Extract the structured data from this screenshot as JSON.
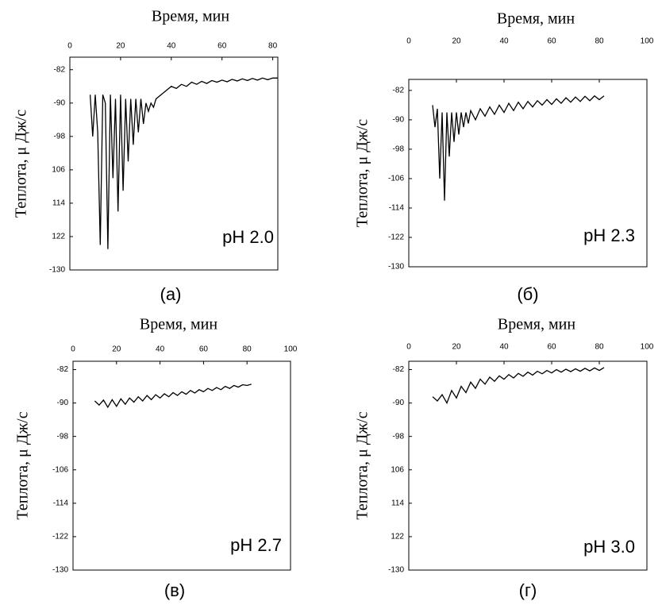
{
  "chart_data": [
    {
      "type": "line",
      "xlabel": "Время, мин",
      "ylabel": "Теплота, μ Дж/с",
      "annotation": "pH 2.0",
      "caption": "(а)",
      "color": "#000000",
      "xlim": [
        0,
        82
      ],
      "xticks": [
        0,
        20,
        40,
        60,
        80
      ],
      "ylim": [
        -130,
        -79
      ],
      "yticks": [
        -82,
        -90,
        -98,
        {
          "value": -106,
          "label": "106"
        },
        {
          "value": -114,
          "label": "114"
        },
        {
          "value": -122,
          "label": "122"
        },
        -130
      ],
      "x": [
        8,
        9,
        10,
        11,
        12,
        13,
        14,
        15,
        16,
        17,
        18,
        19,
        20,
        21,
        22,
        23,
        24,
        25,
        26,
        27,
        28,
        29,
        30,
        31,
        32,
        33,
        34,
        36,
        38,
        40,
        42,
        44,
        46,
        48,
        50,
        52,
        54,
        56,
        58,
        60,
        62,
        64,
        66,
        68,
        70,
        72,
        74,
        76,
        78,
        80,
        82
      ],
      "values": [
        -88,
        -98,
        -88,
        -97,
        -124,
        -88,
        -90,
        -125,
        -88,
        -108,
        -89,
        -116,
        -88,
        -111,
        -89,
        -104,
        -89,
        -100,
        -89,
        -97,
        -89,
        -95,
        -90,
        -92,
        -90,
        -91,
        -89,
        -88,
        -87,
        -86,
        -86.5,
        -85.5,
        -86,
        -85,
        -85.5,
        -84.8,
        -85.3,
        -84.6,
        -85,
        -84.5,
        -84.9,
        -84.3,
        -84.7,
        -84.2,
        -84.6,
        -84.1,
        -84.5,
        -84,
        -84.4,
        -84,
        -84
      ]
    },
    {
      "type": "line",
      "xlabel": "Время, мин",
      "ylabel": "Теплота, μ Дж/с",
      "annotation": "pH 2.3",
      "caption": "(б)",
      "color": "#000000",
      "xlim": [
        0,
        100
      ],
      "xticks": [
        0,
        20,
        40,
        60,
        80,
        100
      ],
      "ylim": [
        -130,
        -79
      ],
      "yticks": [
        -82,
        -90,
        -98,
        -106,
        -114,
        -122,
        -130
      ],
      "x": [
        10,
        11,
        12,
        13,
        14,
        15,
        16,
        17,
        18,
        19,
        20,
        21,
        22,
        23,
        24,
        25,
        26,
        28,
        30,
        32,
        34,
        36,
        38,
        40,
        42,
        44,
        46,
        48,
        50,
        52,
        54,
        56,
        58,
        60,
        62,
        64,
        66,
        68,
        70,
        72,
        74,
        76,
        78,
        80,
        82
      ],
      "values": [
        -86,
        -92,
        -87,
        -106,
        -88,
        -112,
        -88,
        -100,
        -88,
        -96,
        -88,
        -94,
        -88,
        -92,
        -88,
        -91,
        -87.5,
        -90,
        -87,
        -89,
        -86.5,
        -88.5,
        -86,
        -88,
        -85.5,
        -87.5,
        -85.2,
        -87,
        -85,
        -86.5,
        -84.8,
        -86,
        -84.5,
        -85.8,
        -84.3,
        -85.5,
        -84,
        -85.2,
        -83.8,
        -85,
        -83.6,
        -84.8,
        -83.5,
        -84.5,
        -83.5
      ]
    },
    {
      "type": "line",
      "xlabel": "Время, мин",
      "ylabel": "Теплота, μ Дж/с",
      "annotation": "pH 2.7",
      "caption": "(в)",
      "color": "#000000",
      "xlim": [
        0,
        100
      ],
      "xticks": [
        0,
        20,
        40,
        60,
        80,
        100
      ],
      "ylim": [
        -130,
        -80
      ],
      "yticks": [
        -82,
        -90,
        -98,
        -106,
        -114,
        -122,
        -130
      ],
      "x": [
        10,
        12,
        14,
        16,
        18,
        20,
        22,
        24,
        26,
        28,
        30,
        32,
        34,
        36,
        38,
        40,
        42,
        44,
        46,
        48,
        50,
        52,
        54,
        56,
        58,
        60,
        62,
        64,
        66,
        68,
        70,
        72,
        74,
        76,
        78,
        80,
        82
      ],
      "values": [
        -89.5,
        -90.5,
        -89.3,
        -91,
        -89.2,
        -90.8,
        -89,
        -90.3,
        -88.8,
        -89.8,
        -88.5,
        -89.5,
        -88.2,
        -89.2,
        -88,
        -88.8,
        -87.8,
        -88.5,
        -87.5,
        -88.2,
        -87.3,
        -87.9,
        -87,
        -87.6,
        -86.8,
        -87.3,
        -86.5,
        -87,
        -86.3,
        -86.8,
        -86,
        -86.5,
        -85.8,
        -86.2,
        -85.6,
        -85.8,
        -85.5
      ]
    },
    {
      "type": "line",
      "xlabel": "Время, мин",
      "ylabel": "Теплота, μ Дж/с",
      "annotation": "pH 3.0",
      "caption": "(г)",
      "color": "#000000",
      "xlim": [
        0,
        100
      ],
      "xticks": [
        0,
        20,
        40,
        60,
        80,
        100
      ],
      "ylim": [
        -130,
        -80
      ],
      "yticks": [
        -82,
        -90,
        -98,
        {
          "value": -106,
          "label": "106"
        },
        {
          "value": -114,
          "label": "114"
        },
        {
          "value": -122,
          "label": "122"
        },
        -130
      ],
      "x": [
        10,
        12,
        14,
        16,
        18,
        20,
        22,
        24,
        26,
        28,
        30,
        32,
        34,
        36,
        38,
        40,
        42,
        44,
        46,
        48,
        50,
        52,
        54,
        56,
        58,
        60,
        62,
        64,
        66,
        68,
        70,
        72,
        74,
        76,
        78,
        80,
        82
      ],
      "values": [
        -88.5,
        -89.5,
        -88,
        -90,
        -87,
        -88.8,
        -86,
        -87.5,
        -85,
        -86.5,
        -84.3,
        -85.5,
        -83.8,
        -84.8,
        -83.5,
        -84.3,
        -83.2,
        -84,
        -82.9,
        -83.6,
        -82.6,
        -83.3,
        -82.4,
        -83,
        -82.2,
        -82.8,
        -82,
        -82.6,
        -81.9,
        -82.5,
        -81.8,
        -82.4,
        -81.7,
        -82.3,
        -81.6,
        -82.2,
        -81.5
      ]
    }
  ]
}
